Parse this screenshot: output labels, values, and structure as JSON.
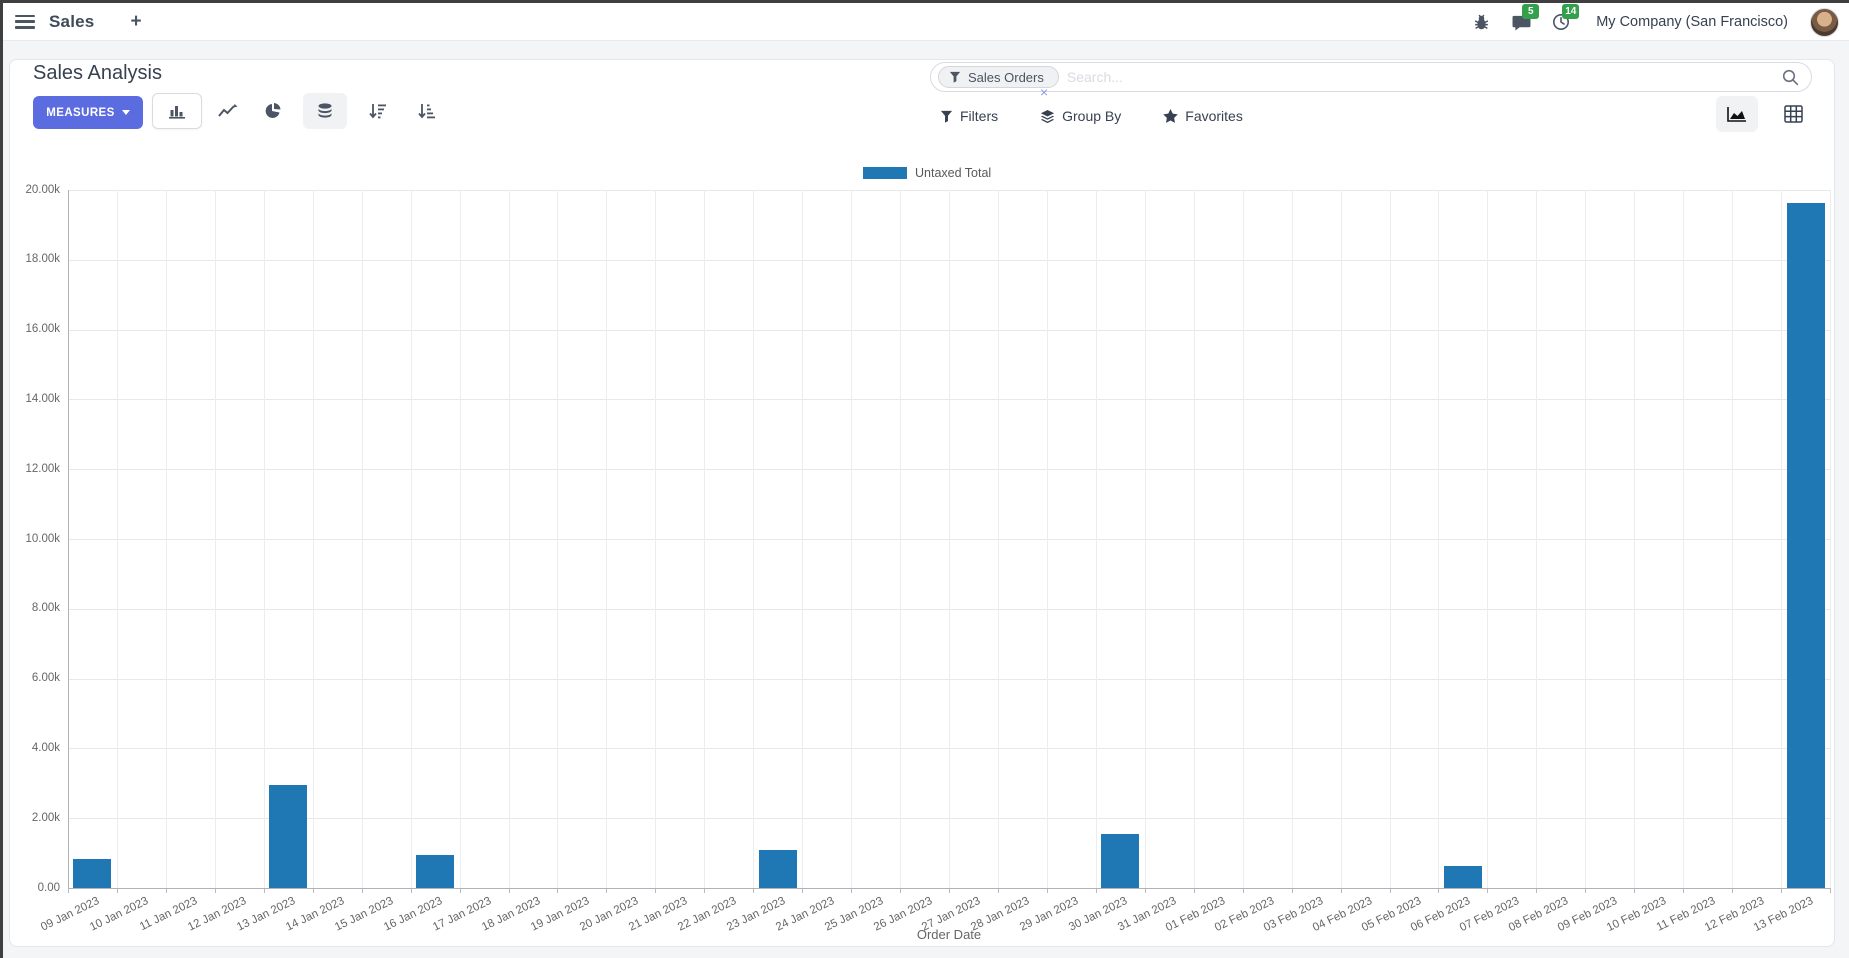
{
  "navbar": {
    "app_name": "Sales",
    "plus": "+",
    "message_badge": "5",
    "activity_badge": "14",
    "company": "My Company (San Francisco)"
  },
  "control_panel": {
    "title": "Sales Analysis",
    "measures_label": "MEASURES",
    "search": {
      "facet_label": "Sales Orders",
      "facet_remove": "×",
      "placeholder": "Search..."
    },
    "filters_label": "Filters",
    "group_by_label": "Group By",
    "favorites_label": "Favorites"
  },
  "chart_data": {
    "type": "bar",
    "title": "",
    "legend": [
      "Untaxed Total"
    ],
    "legend_position": "top",
    "grid": true,
    "xlabel": "Order Date",
    "ylabel": "",
    "ylim": [
      0,
      20000
    ],
    "ytick_labels": [
      "0.00",
      "2.00k",
      "4.00k",
      "6.00k",
      "8.00k",
      "10.00k",
      "12.00k",
      "14.00k",
      "16.00k",
      "18.00k",
      "20.00k"
    ],
    "categories": [
      "09 Jan 2023",
      "10 Jan 2023",
      "11 Jan 2023",
      "12 Jan 2023",
      "13 Jan 2023",
      "14 Jan 2023",
      "15 Jan 2023",
      "16 Jan 2023",
      "17 Jan 2023",
      "18 Jan 2023",
      "19 Jan 2023",
      "20 Jan 2023",
      "21 Jan 2023",
      "22 Jan 2023",
      "23 Jan 2023",
      "24 Jan 2023",
      "25 Jan 2023",
      "26 Jan 2023",
      "27 Jan 2023",
      "28 Jan 2023",
      "29 Jan 2023",
      "30 Jan 2023",
      "31 Jan 2023",
      "01 Feb 2023",
      "02 Feb 2023",
      "03 Feb 2023",
      "04 Feb 2023",
      "05 Feb 2023",
      "06 Feb 2023",
      "07 Feb 2023",
      "08 Feb 2023",
      "09 Feb 2023",
      "10 Feb 2023",
      "11 Feb 2023",
      "12 Feb 2023",
      "13 Feb 2023"
    ],
    "series": [
      {
        "name": "Untaxed Total",
        "color": "#1f77b4",
        "values": [
          830,
          0,
          0,
          0,
          2950,
          0,
          0,
          945,
          0,
          0,
          0,
          0,
          0,
          0,
          1090,
          0,
          0,
          0,
          0,
          0,
          0,
          1550,
          0,
          0,
          0,
          0,
          0,
          0,
          630,
          0,
          0,
          0,
          0,
          0,
          0,
          19630
        ]
      }
    ]
  }
}
